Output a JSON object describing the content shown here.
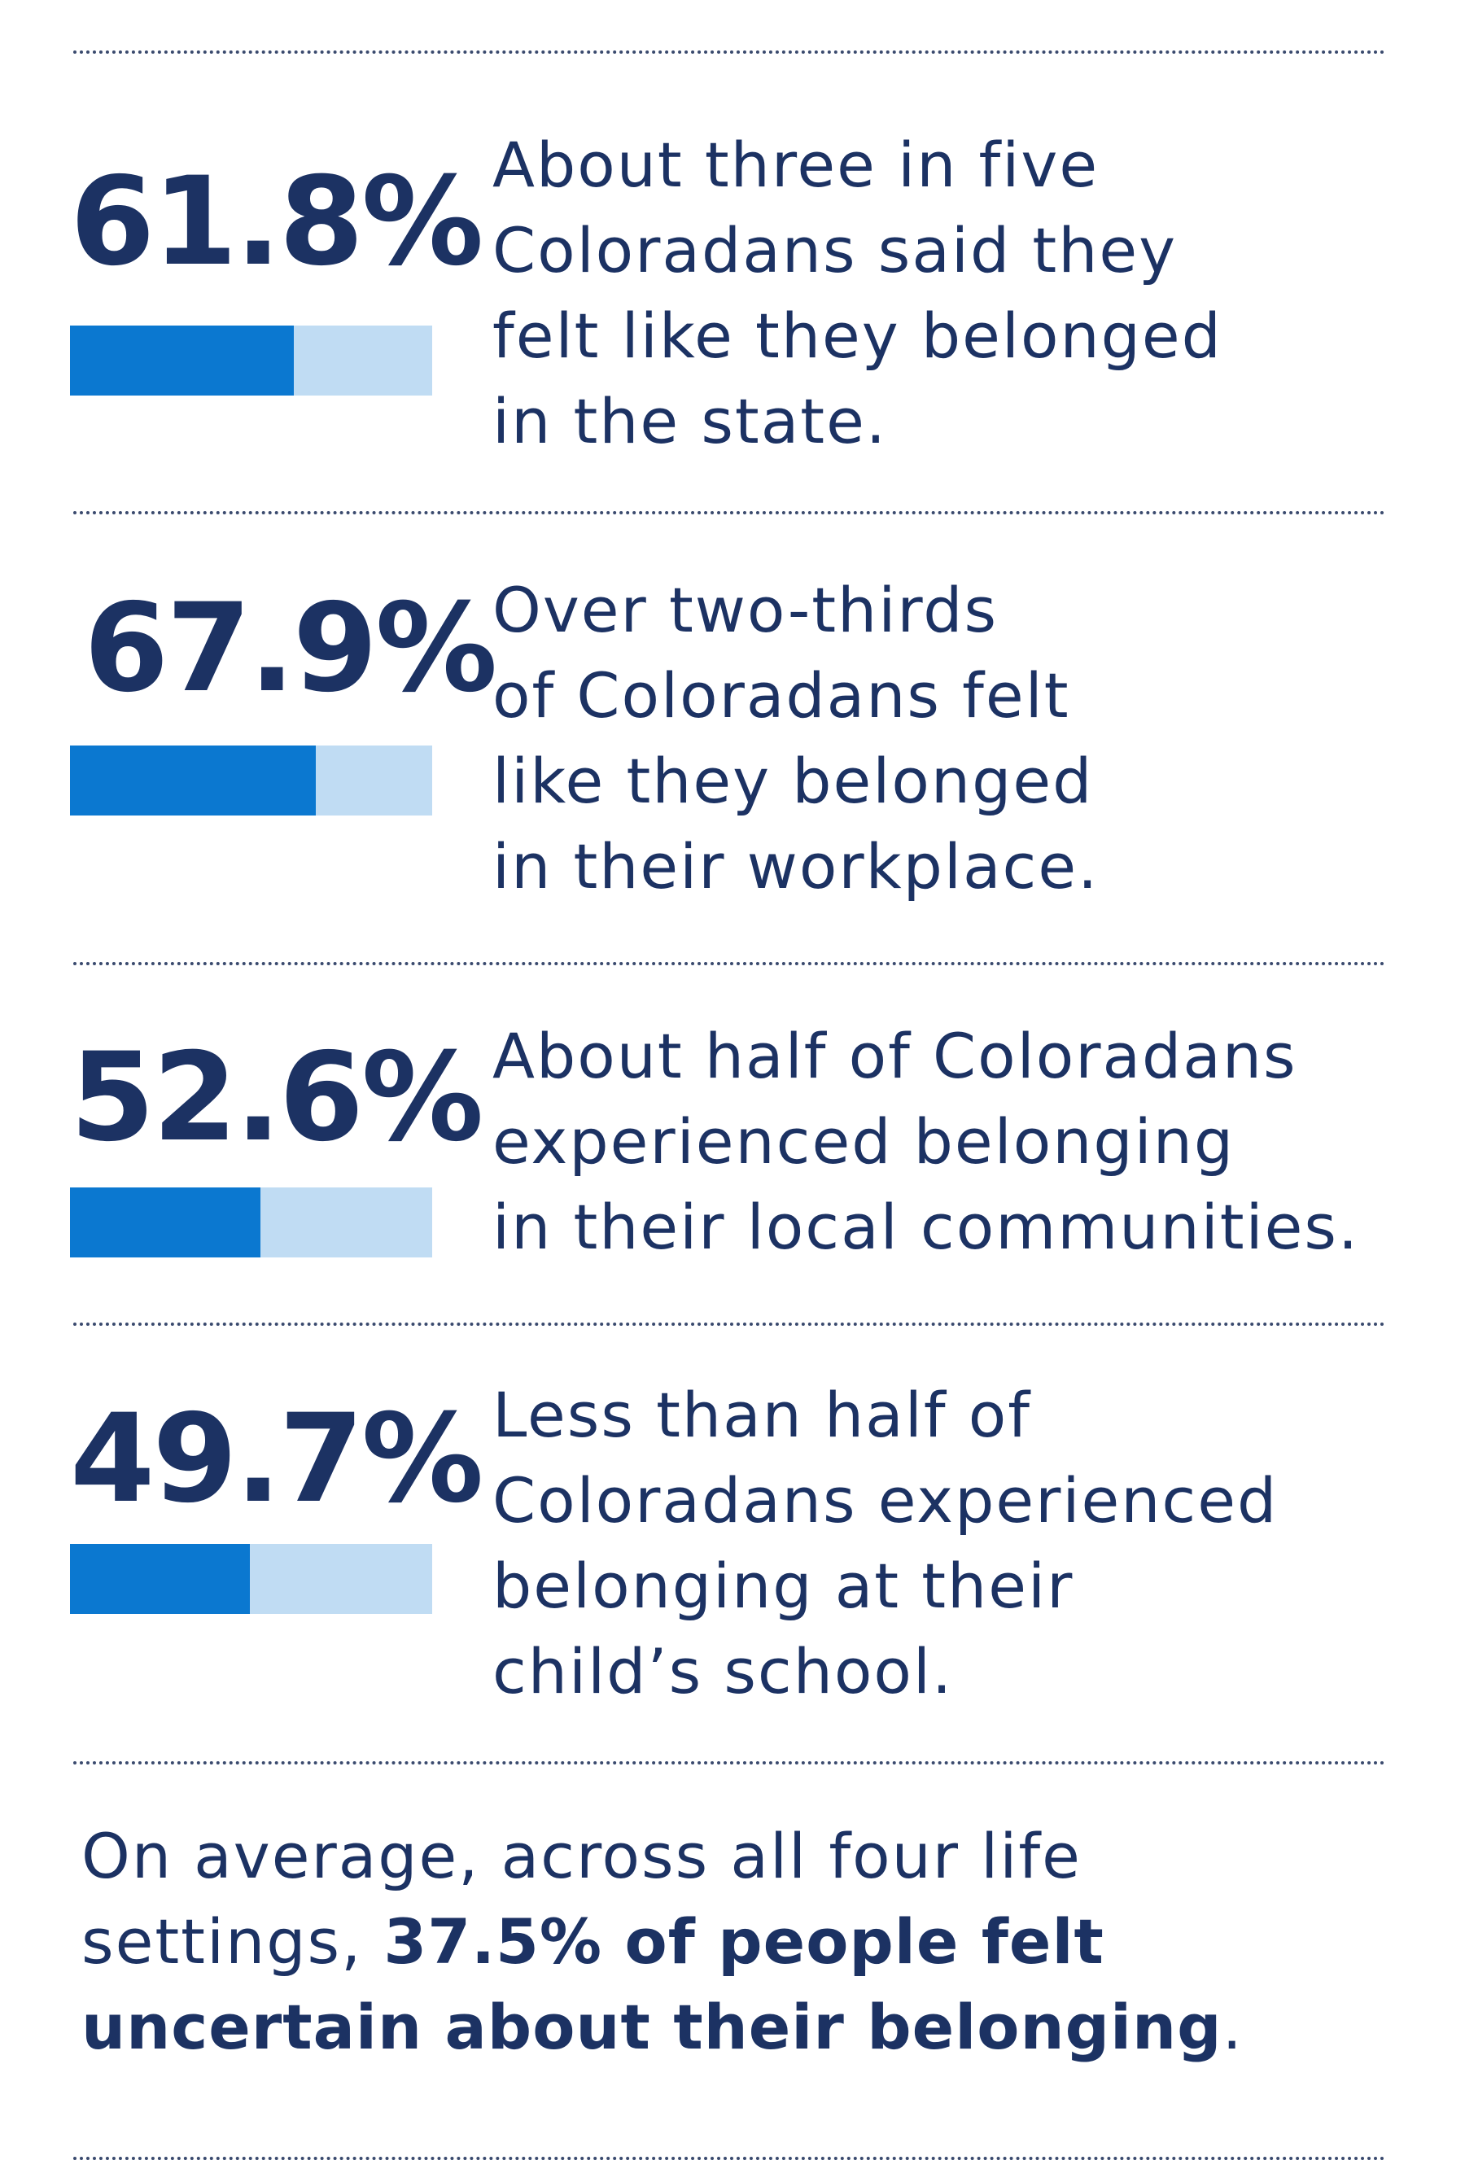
{
  "chart_data": {
    "type": "bar",
    "categories": [
      "state",
      "workplace",
      "local communities",
      "child's school"
    ],
    "values": [
      61.8,
      67.9,
      52.6,
      49.7
    ],
    "ylim": [
      0,
      100
    ],
    "stats": [
      {
        "value": 61.8,
        "label": "61.8%",
        "lines": [
          "About three in five",
          "Coloradans said they",
          "felt like they belonged",
          "in the state."
        ]
      },
      {
        "value": 67.9,
        "label": "67.9%",
        "lines": [
          "Over two-thirds",
          "of Coloradans felt",
          "like they belonged",
          "in their workplace."
        ]
      },
      {
        "value": 52.6,
        "label": "52.6%",
        "lines": [
          "About half of Coloradans",
          "experienced belonging",
          "in their local communities."
        ]
      },
      {
        "value": 49.7,
        "label": "49.7%",
        "lines": [
          "Less than half of",
          "Coloradans experienced",
          "belonging at their",
          "child’s school."
        ]
      }
    ]
  },
  "summary": {
    "line1": "On average, across all four life",
    "line2_plain": "settings, ",
    "line2_bold": "37.5% of people felt",
    "line3_bold": "uncertain about their belonging",
    "line3_end": "."
  },
  "colors": {
    "text": "#1c3263",
    "bar_fill": "#0b78d0",
    "bar_track": "#c0dcf3"
  }
}
